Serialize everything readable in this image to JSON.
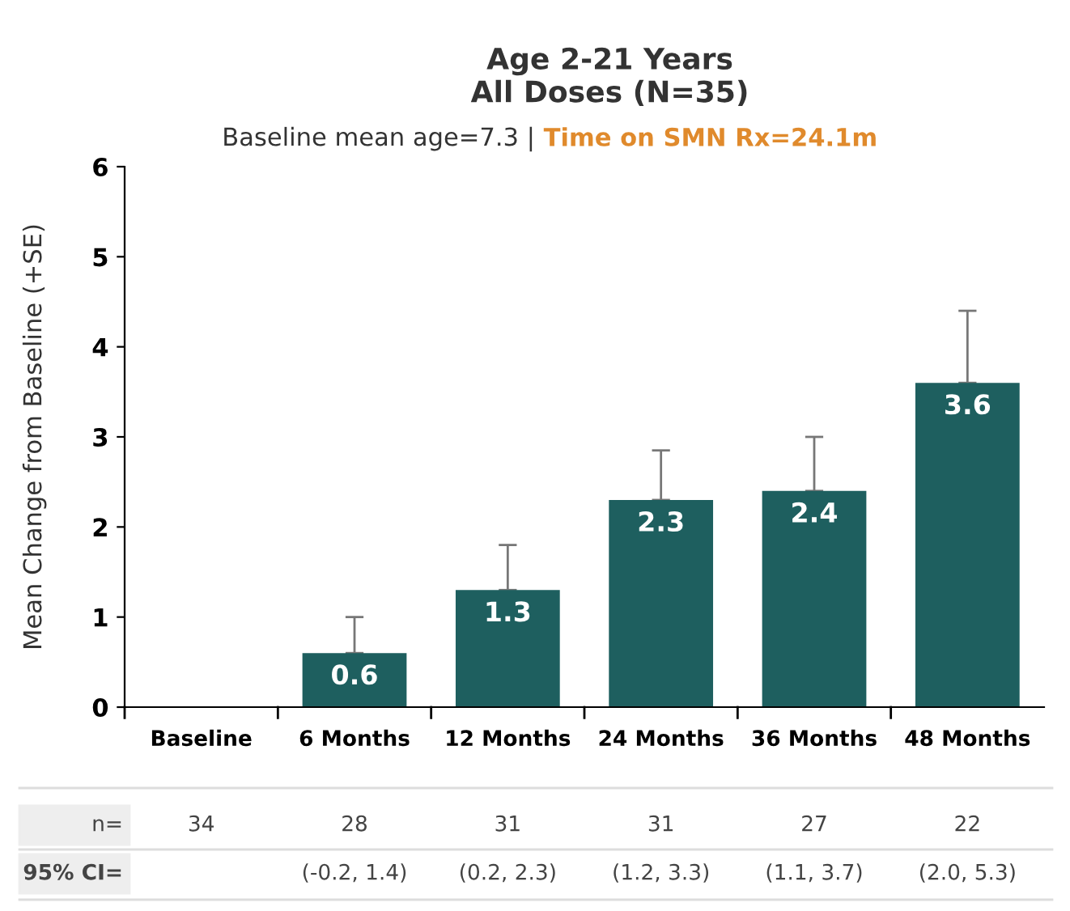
{
  "chart_data": {
    "type": "bar",
    "title": "Age 2-21 Years\nAll Doses (N=35)",
    "subtitle": "Baseline mean age=7.3 | Time on SMN Rx=24.1m",
    "ylabel": "Mean Change from Baseline (+SE)",
    "categories": [
      "Baseline",
      "6 Months",
      "12 Months",
      "24 Months",
      "36 Months",
      "48 Months"
    ],
    "values": [
      0,
      0.6,
      1.3,
      2.3,
      2.4,
      3.6
    ],
    "errors": [
      null,
      [
        0.6,
        1.0
      ],
      [
        1.3,
        1.8
      ],
      [
        2.3,
        2.85
      ],
      [
        2.4,
        3.0
      ],
      [
        3.6,
        4.4
      ]
    ],
    "value_labels": [
      null,
      "0.6",
      "1.3",
      "2.3",
      "2.4",
      "3.6"
    ],
    "color": "#1e5f5f",
    "ylim": [
      0,
      6
    ],
    "yticks": [
      0,
      1,
      2,
      3,
      4,
      5,
      6
    ],
    "grid": false,
    "annotations": [
      "n=",
      "34",
      "28",
      "31",
      "31",
      "27",
      "22",
      "95% CI=",
      "(-0.2, 1.4)",
      "(0.2, 2.3)",
      "(1.2, 3.3)",
      "(1.1, 3.7)",
      "(2.0, 5.3)"
    ]
  }
}
